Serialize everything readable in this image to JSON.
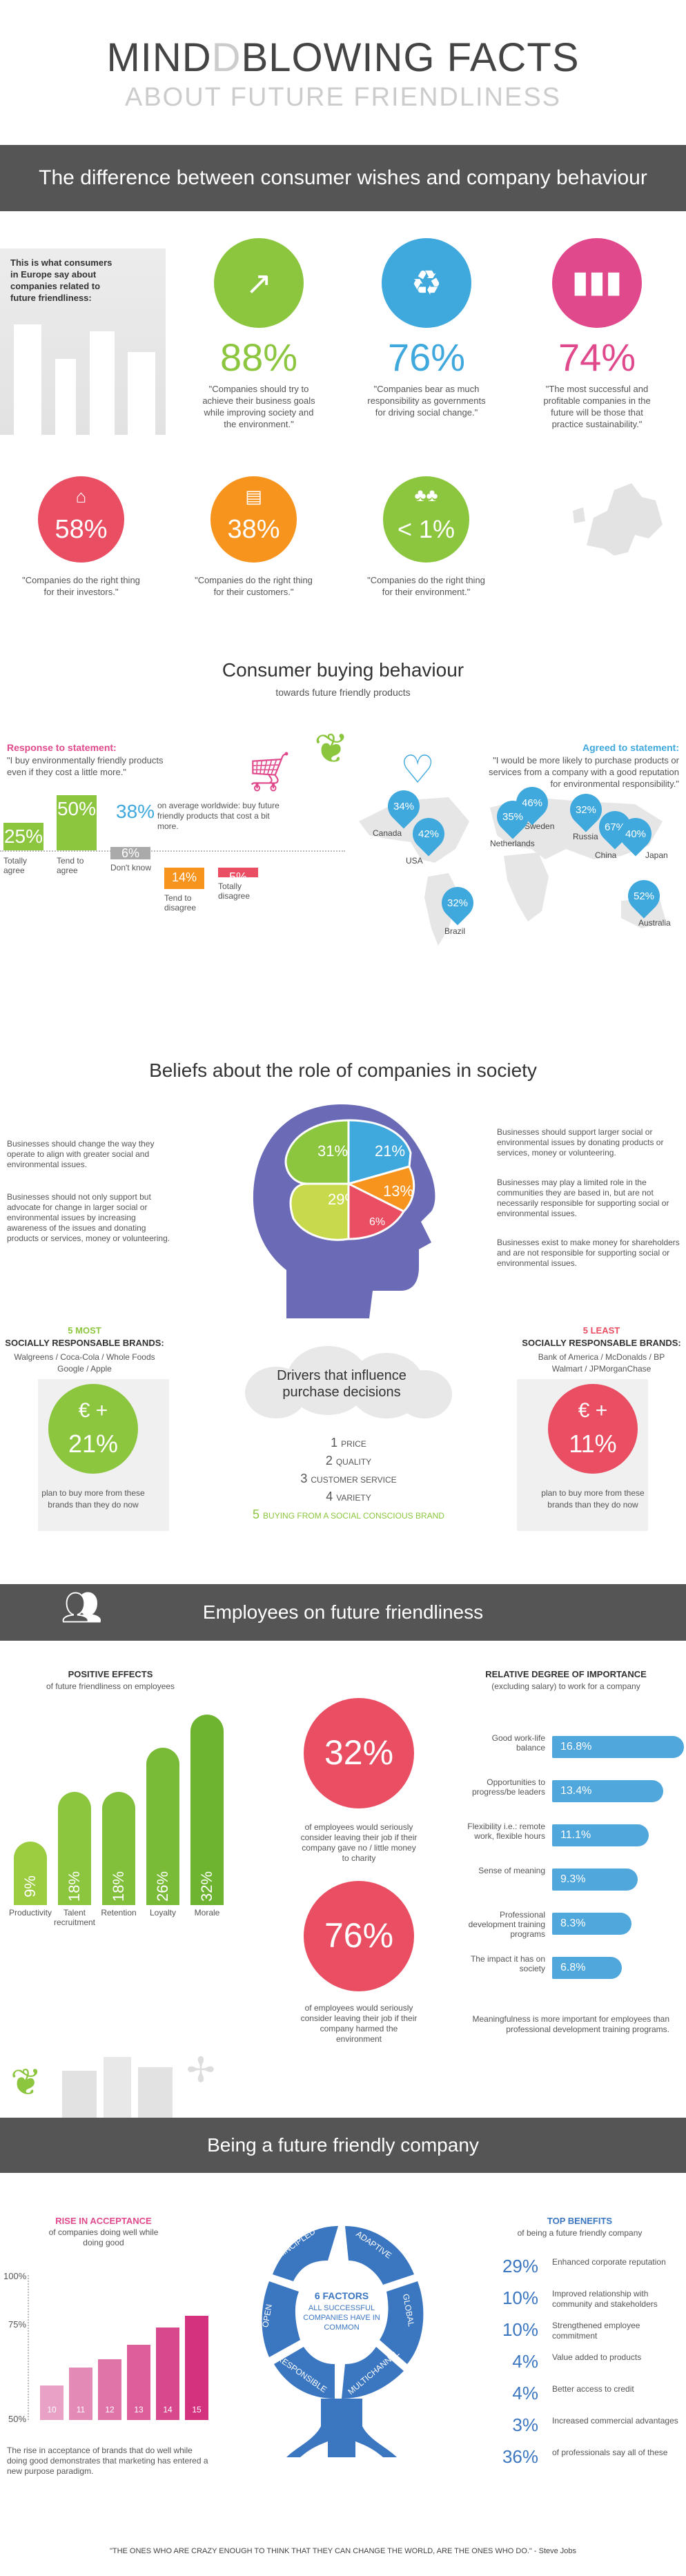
{
  "header": {
    "title_a": "MIND",
    "title_b": "BLOWING FACTS",
    "subtitle": "ABOUT FUTURE FRIENDLINESS"
  },
  "section1": {
    "band": "The difference between consumer wishes and company behaviour",
    "intro": "This is what consumers in Europe say about companies related to future friendliness:",
    "stats": [
      {
        "value": "88%",
        "text": "\"Companies should try to achieve their business goals while improving society and the environment.\"",
        "color": "#8cc63f",
        "icon": "growth-icon"
      },
      {
        "value": "76%",
        "text": "\"Companies bear as much responsibility as governments for driving social change.\"",
        "color": "#3fa8dd",
        "icon": "recycle-icon"
      },
      {
        "value": "74%",
        "text": "\"The most successful and profitable companies in the future will be those that practice sustainability.\"",
        "color": "#e0498c",
        "icon": "chart-icon"
      },
      {
        "value": "58%",
        "text": "\"Companies do the right thing for their investors.\"",
        "color": "#e94e62",
        "icon": "factory-icon"
      },
      {
        "value": "38%",
        "text": "\"Companies do the right thing for their customers.\"",
        "color": "#f7941d",
        "icon": "shop-icon"
      },
      {
        "value": "< 1%",
        "text": "\"Companies do the right thing for their environment.\"",
        "color": "#8cc63f",
        "icon": "trees-icon"
      }
    ]
  },
  "section2": {
    "title": "Consumer buying behaviour",
    "subtitle": "towards future friendly products",
    "left_heading": "Response to statement:",
    "left_statement": "\"I buy environmentally friendly products even if they cost a little more.\"",
    "right_heading": "Agreed to statement:",
    "right_statement": "\"I would be more likely to purchase products or services from a company with a good reputation for environmental responsibility.\"",
    "worldwide_value": "38%",
    "worldwide_text": "on average worldwide: buy future friendly products that cost a bit more.",
    "bars": [
      {
        "value": "25%",
        "label": "Totally agree",
        "color": "#8cc63f",
        "pct": 25
      },
      {
        "value": "50%",
        "label": "Tend to agree",
        "color": "#8cc63f",
        "pct": 50
      },
      {
        "value": "6%",
        "label": "Don't know",
        "color": "#aaaaaa",
        "pct": 6
      },
      {
        "value": "14%",
        "label": "Tend to disagree",
        "color": "#f7941d",
        "pct": 14
      },
      {
        "value": "5%",
        "label": "Totally disagree",
        "color": "#e94e62",
        "pct": 5
      }
    ],
    "pins": [
      {
        "value": "34%",
        "country": "Canada"
      },
      {
        "value": "42%",
        "country": "USA"
      },
      {
        "value": "32%",
        "country": "Brazil"
      },
      {
        "value": "46%",
        "country": "Sweden"
      },
      {
        "value": "35%",
        "country": "Netherlands"
      },
      {
        "value": "32%",
        "country": "Russia"
      },
      {
        "value": "67%",
        "country": "China"
      },
      {
        "value": "40%",
        "country": "Japan"
      },
      {
        "value": "52%",
        "country": "Australia"
      }
    ]
  },
  "section3": {
    "title": "Beliefs about the role of companies in society",
    "slices": [
      {
        "value": "31%",
        "color": "#8cc63f"
      },
      {
        "value": "21%",
        "color": "#3fa8dd"
      },
      {
        "value": "13%",
        "color": "#f7941d"
      },
      {
        "value": "29%",
        "color": "#c9d94c"
      },
      {
        "value": "6%",
        "color": "#e94e62"
      }
    ],
    "left_texts": [
      "Businesses should change the way they operate to align with greater social and environmental issues.",
      "Businesses should not only support but advocate for change in larger social or environmental issues by increasing awareness of the issues and donating products or services, money or volunteering."
    ],
    "right_texts": [
      "Businesses should support larger social or environmental issues by donating products or services, money or volunteering.",
      "Businesses may play a limited role in the communities they are based in, but are not necessarily responsible for supporting social or environmental issues.",
      "Businesses exist to make money for shareholders and are not responsible for supporting social or environmental issues."
    ],
    "most": {
      "heading_a": "5 MOST",
      "heading_b": "SOCIALLY RESPONSABLE BRANDS:",
      "brands": "Walgreens / Coca-Cola / Whole Foods Google / Apple",
      "value": "21%",
      "text": "plan to buy more from these brands than they do now",
      "symbol": "€ +"
    },
    "least": {
      "heading_a": "5 LEAST",
      "heading_b": "SOCIALLY RESPONSABLE BRANDS:",
      "brands": "Bank of America / McDonalds / BP Walmart / JPMorganChase",
      "value": "11%",
      "text": "plan to buy more from these brands than they do now",
      "symbol": "€ +"
    },
    "drivers_title": "Drivers that influence purchase decisions",
    "drivers": [
      {
        "n": "1",
        "label": "PRICE"
      },
      {
        "n": "2",
        "label": "QUALITY"
      },
      {
        "n": "3",
        "label": "CUSTOMER SERVICE"
      },
      {
        "n": "4",
        "label": "VARIETY"
      },
      {
        "n": "5",
        "label": "BUYING FROM A SOCIAL CONSCIOUS BRAND"
      }
    ]
  },
  "section4": {
    "band": "Employees on future friendliness",
    "effects_title": "POSITIVE EFFECTS",
    "effects_subtitle": "of future friendliness on employees",
    "effects": [
      {
        "value": "9%",
        "label": "Productivity",
        "pct": 9
      },
      {
        "value": "18%",
        "label": "Talent recruitment",
        "pct": 18
      },
      {
        "value": "18%",
        "label": "Retention",
        "pct": 18
      },
      {
        "value": "26%",
        "label": "Loyalty",
        "pct": 26
      },
      {
        "value": "32%",
        "label": "Morale",
        "pct": 32
      }
    ],
    "stat1": {
      "value": "32%",
      "text": "of employees would seriously consider leaving their job if their company gave no / little money to charity"
    },
    "stat2": {
      "value": "76%",
      "text": "of employees would seriously consider leaving their job if their company harmed the environment"
    },
    "importance_title": "RELATIVE DEGREE OF IMPORTANCE",
    "importance_subtitle": "(excluding salary) to work for a company",
    "importance": [
      {
        "label": "Good work-life balance",
        "value": "16.8%",
        "pct": 16.8
      },
      {
        "label": "Opportunities to progress/be leaders",
        "value": "13.4%",
        "pct": 13.4
      },
      {
        "label": "Flexibility i.e.: remote work, flexible hours",
        "value": "11.1%",
        "pct": 11.1
      },
      {
        "label": "Sense of meaning",
        "value": "9.3%",
        "pct": 9.3
      },
      {
        "label": "Professional development training programs",
        "value": "8.3%",
        "pct": 8.3
      },
      {
        "label": "The impact it has on society",
        "value": "6.8%",
        "pct": 6.8
      }
    ],
    "importance_note": "Meaningfulness is more important for employees than professional development training programs."
  },
  "section5": {
    "band": "Being a future friendly company",
    "rise_title": "RISE IN ACCEPTANCE",
    "rise_subtitle": "of companies doing well while doing good",
    "axis": [
      "100%",
      "75%",
      "50%"
    ],
    "rise": [
      {
        "label": "10",
        "pct": 62
      },
      {
        "label": "11",
        "pct": 68
      },
      {
        "label": "12",
        "pct": 71
      },
      {
        "label": "13",
        "pct": 76
      },
      {
        "label": "14",
        "pct": 82
      },
      {
        "label": "15",
        "pct": 86
      }
    ],
    "rise_note": "The rise in acceptance of brands that do well while doing good demonstrates that marketing has entered a new purpose paradigm.",
    "factors_title": "6 FACTORS",
    "factors_sub": "ALL SUCCESSFUL COMPANIES HAVE IN COMMON",
    "factors": [
      "PRINCIPLED",
      "ADAPTIVE",
      "GLOBAL",
      "MULTICHANNEL",
      "RESPONSIBLE",
      "OPEN"
    ],
    "benefits_title": "TOP BENEFITS",
    "benefits_subtitle": "of being a future friendly company",
    "benefits": [
      {
        "value": "29%",
        "text": "Enhanced corporate reputation"
      },
      {
        "value": "10%",
        "text": "Improved relationship with community and stakeholders"
      },
      {
        "value": "10%",
        "text": "Strengthened employee commitment"
      },
      {
        "value": "4%",
        "text": "Value added to products"
      },
      {
        "value": "4%",
        "text": "Better access to credit"
      },
      {
        "value": "3%",
        "text": "Increased commercial advantages"
      },
      {
        "value": "36%",
        "text": "of professionals say all of these"
      }
    ]
  },
  "footer": {
    "quote": "\"THE ONES WHO ARE CRAZY ENOUGH TO THINK THAT THEY CAN CHANGE THE WORLD, ARE THE ONES WHO DO.\"",
    "author": "- Steve Jobs"
  }
}
